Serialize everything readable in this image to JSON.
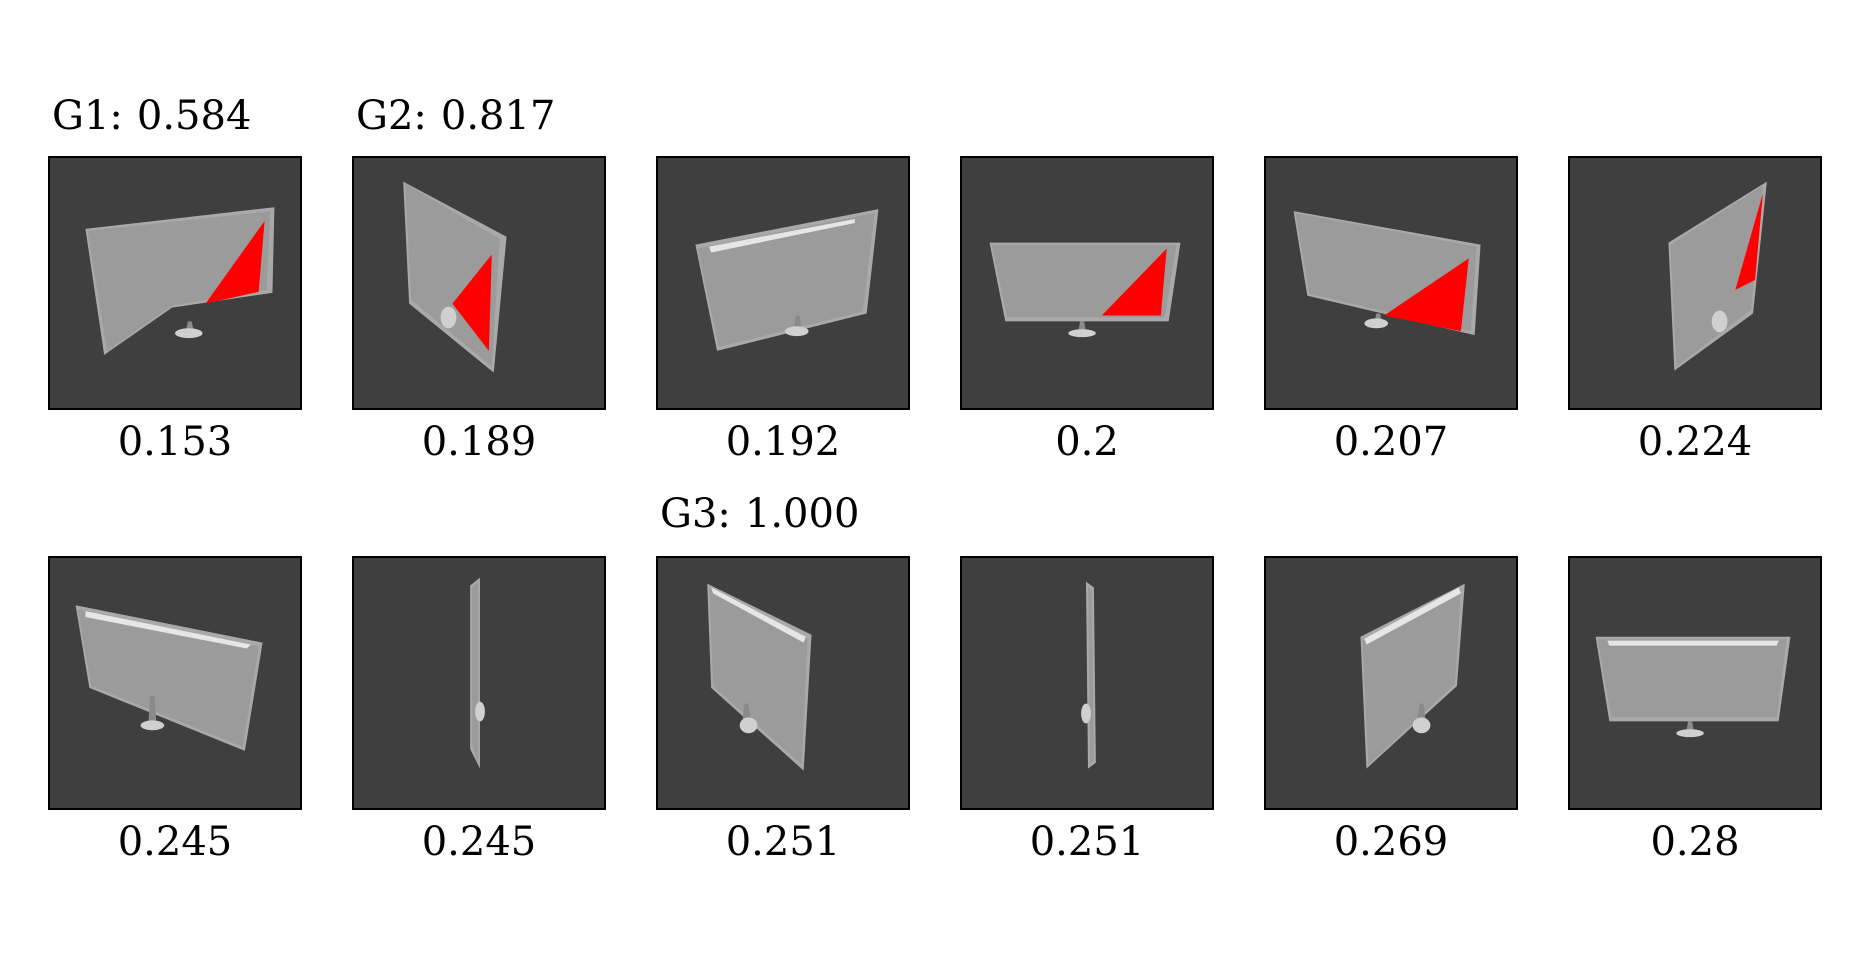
{
  "group_labels": [
    {
      "name": "G1:",
      "value": "0.584"
    },
    {
      "name": "G2:",
      "value": "0.817"
    },
    {
      "name": "G3:",
      "value": "1.000"
    }
  ],
  "rows": [
    {
      "tiles": [
        {
          "score": "0.153",
          "view": "monitor-red-triangle"
        },
        {
          "score": "0.189",
          "view": "monitor-red-triangle"
        },
        {
          "score": "0.192",
          "view": "monitor"
        },
        {
          "score": "0.2",
          "view": "monitor-red-triangle"
        },
        {
          "score": "0.207",
          "view": "monitor-red-triangle"
        },
        {
          "score": "0.224",
          "view": "monitor-red-triangle"
        }
      ]
    },
    {
      "tiles": [
        {
          "score": "0.245",
          "view": "monitor"
        },
        {
          "score": "0.245",
          "view": "monitor-edge"
        },
        {
          "score": "0.251",
          "view": "monitor"
        },
        {
          "score": "0.251",
          "view": "monitor-edge"
        },
        {
          "score": "0.269",
          "view": "monitor"
        },
        {
          "score": "0.28",
          "view": "monitor"
        }
      ]
    }
  ],
  "colors": {
    "tile_background": "#3f3f3f",
    "screen": "#9b9b9b",
    "frame": "#a9a9a9",
    "highlight": "#e6e6e6",
    "marker": "#ff0000"
  }
}
